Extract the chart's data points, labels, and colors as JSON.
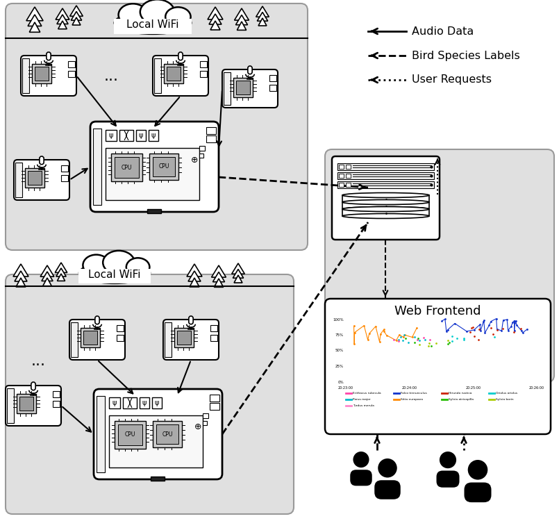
{
  "bg_color": "#ffffff",
  "panel_color": "#e0e0e0",
  "legend_items": [
    {
      "label": "Audio Data",
      "style": "solid"
    },
    {
      "label": "Bird Species Labels",
      "style": "dashed"
    },
    {
      "label": "User Requests",
      "style": "dotted"
    }
  ],
  "chart_species": [
    {
      "name": "Erithacus rubecula",
      "color": "#ff44aa"
    },
    {
      "name": "Falco tinnunculus",
      "color": "#1133cc"
    },
    {
      "name": "Hirundo rustica",
      "color": "#cc2200"
    },
    {
      "name": "Oriolus oriolus",
      "color": "#00cccc"
    },
    {
      "name": "Parus major",
      "color": "#00bbcc"
    },
    {
      "name": "Sitta europaea",
      "color": "#ff8800"
    },
    {
      "name": "Sylvia atricapilla",
      "color": "#22bb00"
    },
    {
      "name": "Sylvia borin",
      "color": "#aacc00"
    },
    {
      "name": "Turdus merula",
      "color": "#ff88cc"
    }
  ]
}
